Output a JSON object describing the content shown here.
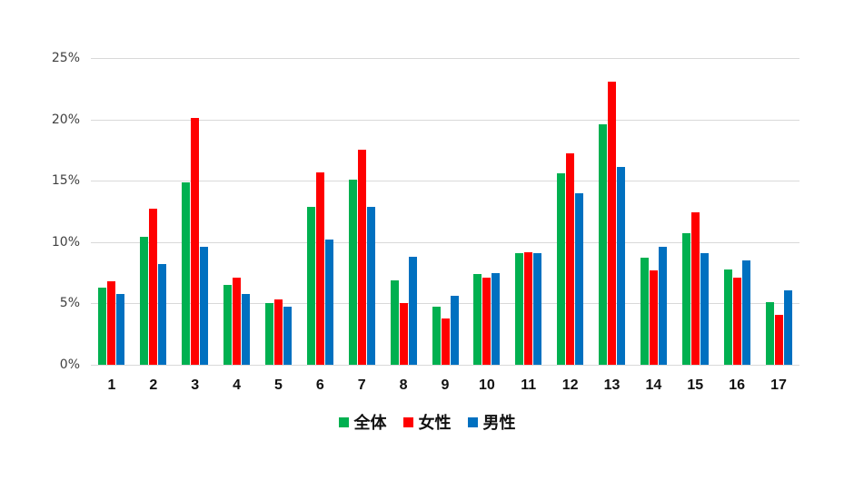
{
  "chart_data": {
    "type": "bar",
    "title": "",
    "xlabel": "",
    "ylabel": "",
    "ylim": [
      0,
      25
    ],
    "y_ticks": [
      "0%",
      "5%",
      "10%",
      "15%",
      "20%",
      "25%"
    ],
    "grid": true,
    "legend_position": "bottom",
    "categories": [
      "1",
      "2",
      "3",
      "4",
      "5",
      "6",
      "7",
      "8",
      "9",
      "10",
      "11",
      "12",
      "13",
      "14",
      "15",
      "16",
      "17"
    ],
    "series": [
      {
        "name": "全体",
        "color": "#00B050",
        "values": [
          6.3,
          10.4,
          14.9,
          6.5,
          5.0,
          12.9,
          15.1,
          6.9,
          4.7,
          7.4,
          9.1,
          15.6,
          19.6,
          8.7,
          10.7,
          7.8,
          5.1
        ]
      },
      {
        "name": "女性",
        "color": "#FF0000",
        "values": [
          6.8,
          12.7,
          20.1,
          7.1,
          5.3,
          15.7,
          17.5,
          5.0,
          3.8,
          7.1,
          9.2,
          17.2,
          23.1,
          7.7,
          12.4,
          7.1,
          4.1
        ]
      },
      {
        "name": "男性",
        "color": "#0070C0",
        "values": [
          5.8,
          8.2,
          9.6,
          5.8,
          4.7,
          10.2,
          12.9,
          8.8,
          5.6,
          7.5,
          9.1,
          14.0,
          16.1,
          9.6,
          9.1,
          8.5,
          6.1
        ]
      }
    ]
  }
}
